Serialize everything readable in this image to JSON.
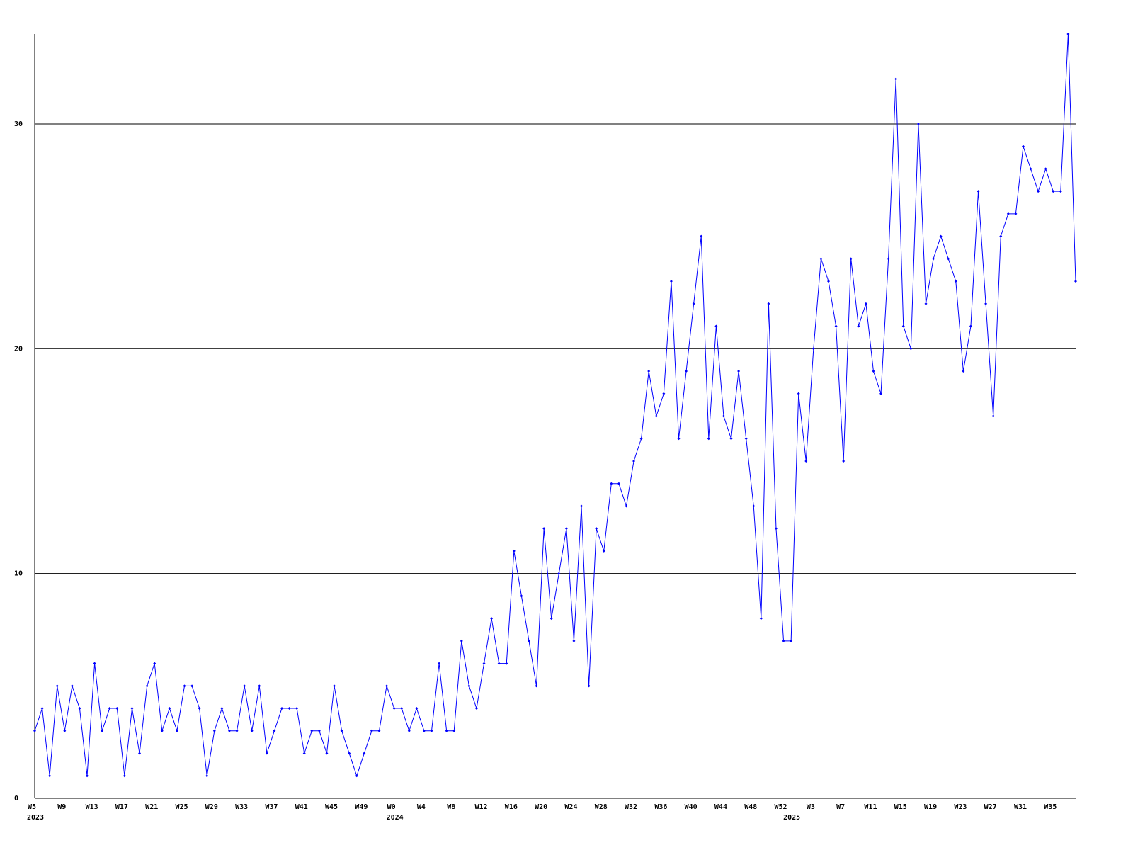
{
  "chart_data": {
    "type": "line",
    "categories": [
      "W5",
      null,
      null,
      null,
      "W9",
      null,
      null,
      null,
      "W13",
      null,
      null,
      null,
      "W17",
      null,
      null,
      null,
      "W21",
      null,
      null,
      null,
      "W25",
      null,
      null,
      null,
      "W29",
      null,
      null,
      null,
      "W33",
      null,
      null,
      null,
      "W37",
      null,
      null,
      null,
      "W41",
      null,
      null,
      null,
      "W45",
      null,
      null,
      null,
      "W49",
      null,
      null,
      null,
      "W0",
      null,
      null,
      null,
      "W4",
      null,
      null,
      null,
      "W8",
      null,
      null,
      null,
      "W12",
      null,
      null,
      null,
      "W16",
      null,
      null,
      null,
      "W20",
      null,
      null,
      null,
      "W24",
      null,
      null,
      null,
      "W28",
      null,
      null,
      null,
      "W32",
      null,
      null,
      null,
      "W36",
      null,
      null,
      null,
      "W40",
      null,
      null,
      null,
      "W44",
      null,
      null,
      null,
      "W48",
      null,
      null,
      null,
      "W52",
      null,
      null,
      null,
      "W3",
      null,
      null,
      null,
      "W7",
      null,
      null,
      null,
      "W11",
      null,
      null,
      null,
      "W15",
      null,
      null,
      null,
      "W19",
      null,
      null,
      null,
      "W23",
      null,
      null,
      null,
      "W27",
      null,
      null,
      null,
      "W31",
      null,
      null,
      null,
      "W35",
      null,
      null,
      null
    ],
    "year_labels": [
      "2023",
      null,
      null,
      null,
      null,
      null,
      null,
      null,
      null,
      null,
      null,
      null,
      null,
      null,
      null,
      null,
      null,
      null,
      null,
      null,
      null,
      null,
      null,
      null,
      null,
      null,
      null,
      null,
      null,
      null,
      null,
      null,
      null,
      null,
      null,
      null,
      null,
      null,
      null,
      null,
      null,
      null,
      null,
      null,
      null,
      null,
      null,
      null,
      "2024",
      null,
      null,
      null,
      null,
      null,
      null,
      null,
      null,
      null,
      null,
      null,
      null,
      null,
      null,
      null,
      null,
      null,
      null,
      null,
      null,
      null,
      null,
      null,
      null,
      null,
      null,
      null,
      null,
      null,
      null,
      null,
      null,
      null,
      null,
      null,
      null,
      null,
      null,
      null,
      null,
      null,
      null,
      null,
      null,
      null,
      null,
      null,
      null,
      null,
      null,
      null,
      null,
      "2025",
      null,
      null,
      null,
      null,
      null,
      null,
      null,
      null,
      null,
      null,
      null,
      null,
      null,
      null,
      null,
      null,
      null,
      null,
      null,
      null,
      null,
      null,
      null,
      null,
      null,
      null,
      null,
      null,
      null,
      null,
      null,
      null,
      null,
      null,
      null,
      null,
      null,
      null
    ],
    "series": [
      {
        "color": "#0000ff",
        "values": [
          3,
          4,
          1,
          5,
          3,
          5,
          4,
          1,
          6,
          3,
          4,
          4,
          1,
          4,
          2,
          5,
          6,
          3,
          4,
          3,
          5,
          5,
          4,
          1,
          3,
          4,
          3,
          3,
          5,
          3,
          5,
          2,
          3,
          4,
          4,
          4,
          2,
          3,
          3,
          2,
          5,
          3,
          2,
          1,
          2,
          3,
          3,
          5,
          4,
          4,
          3,
          4,
          3,
          3,
          6,
          3,
          3,
          7,
          5,
          4,
          6,
          8,
          6,
          6,
          11,
          9,
          7,
          5,
          12,
          8,
          10,
          12,
          7,
          13,
          5,
          12,
          11,
          14,
          14,
          13,
          15,
          16,
          19,
          17,
          18,
          23,
          16,
          19,
          22,
          25,
          16,
          21,
          17,
          16,
          19,
          16,
          13,
          8,
          22,
          12,
          7,
          7,
          18,
          15,
          20,
          24,
          23,
          21,
          15,
          24,
          21,
          22,
          19,
          18,
          24,
          32,
          21,
          20,
          30,
          22,
          24,
          25,
          24,
          23,
          19,
          21,
          27,
          22,
          17,
          25,
          26,
          26,
          29,
          28,
          27,
          28,
          27,
          27,
          34,
          23
        ]
      }
    ],
    "ylim": [
      0,
      34
    ],
    "yticks": [
      0,
      10,
      20,
      30
    ],
    "grid": true
  }
}
